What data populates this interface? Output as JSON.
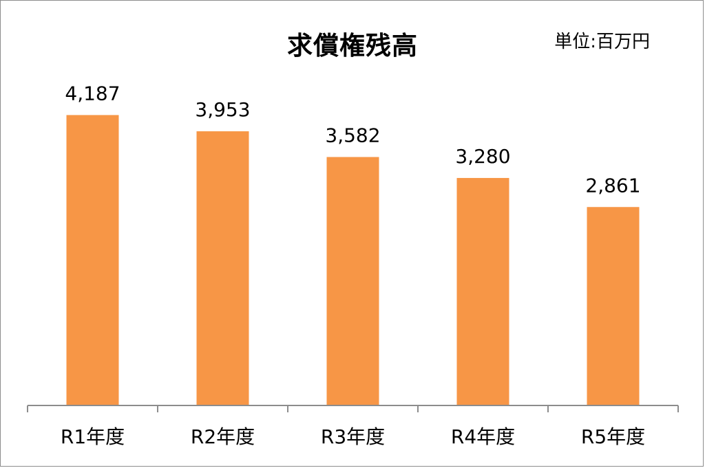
{
  "chart_data": {
    "type": "bar",
    "title": "求償権残高",
    "unit_label": "単位:百万円",
    "categories": [
      "R1年度",
      "R2年度",
      "R3年度",
      "R4年度",
      "R5年度"
    ],
    "values": [
      4187,
      3953,
      3582,
      3280,
      2861
    ],
    "value_labels": [
      "4,187",
      "3,953",
      "3,582",
      "3,280",
      "2,861"
    ],
    "ylim": [
      0,
      4500
    ],
    "bar_color": "#f79646",
    "grid": false,
    "legend": "none"
  }
}
